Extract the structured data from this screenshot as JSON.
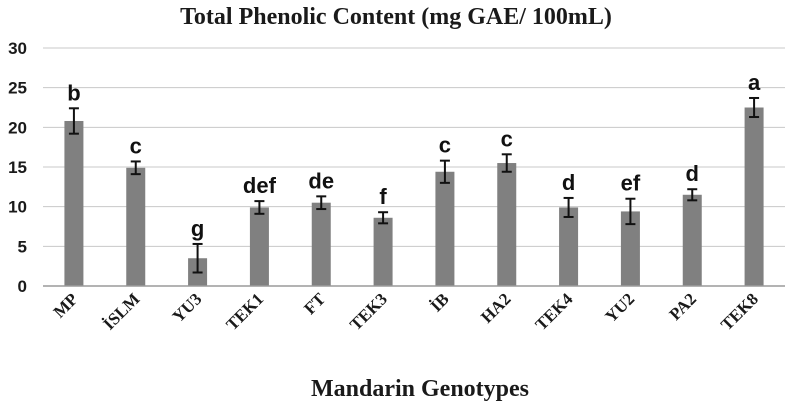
{
  "chart_data": {
    "type": "bar",
    "title": "Total Phenolic Content (mg GAE/ 100mL)",
    "xlabel": "Mandarin Genotypes",
    "ylabel": "",
    "ylim": [
      0,
      30
    ],
    "yticks": [
      0,
      5,
      10,
      15,
      20,
      25,
      30
    ],
    "grid": true,
    "categories": [
      "MP",
      "İSLM",
      "YU3",
      "TEK1",
      "FT",
      "TEK3",
      "İB",
      "HA2",
      "TEK4",
      "YU2",
      "PA2",
      "TEK8"
    ],
    "values": [
      20.8,
      14.9,
      3.5,
      9.9,
      10.5,
      8.6,
      14.4,
      15.5,
      9.9,
      9.4,
      11.5,
      22.5
    ],
    "errors": [
      1.6,
      0.8,
      1.8,
      0.8,
      0.8,
      0.7,
      1.4,
      1.1,
      1.2,
      1.6,
      0.7,
      1.2
    ],
    "significance_letters": [
      "b",
      "c",
      "g",
      "def",
      "de",
      "f",
      "c",
      "c",
      "d",
      "ef",
      "d",
      "a"
    ],
    "bar_color": "#808080"
  }
}
